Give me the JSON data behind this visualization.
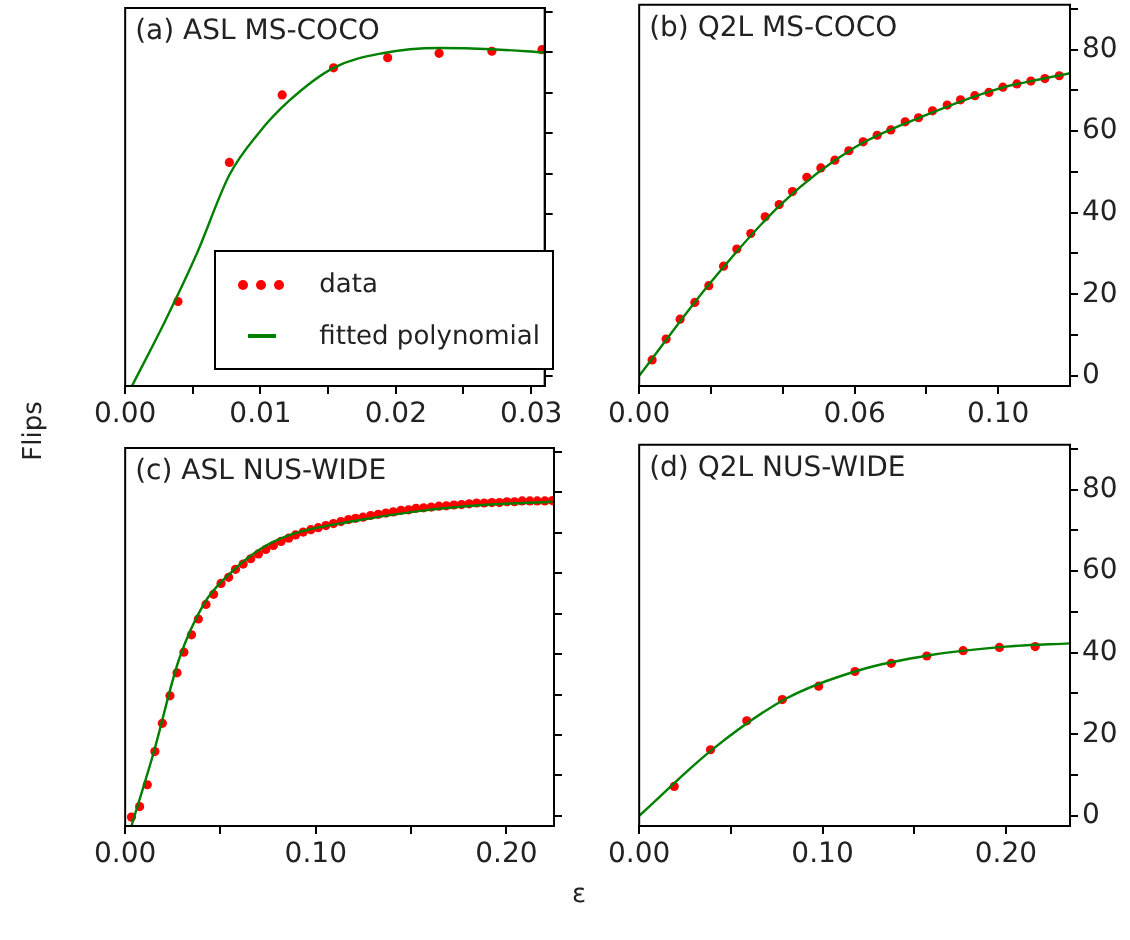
{
  "chart_data": [
    {
      "type": "scatter",
      "title": "(a) ASL MS-COCO",
      "ylabel": "Flips",
      "xlim": [
        0,
        0.031
      ],
      "xticks": [
        {
          "value": 0,
          "label": "0.00"
        },
        {
          "value": 0.005,
          "label": null
        },
        {
          "value": 0.01,
          "label": "0.01"
        },
        {
          "value": 0.015,
          "label": null
        },
        {
          "value": 0.02,
          "label": "0.02"
        },
        {
          "value": 0.025,
          "label": null
        },
        {
          "value": 0.03,
          "label": "0.03"
        }
      ],
      "ylim": [
        -2.5,
        91
      ],
      "yticks": [
        {
          "value": 0,
          "label": null
        },
        {
          "value": 10,
          "label": null
        },
        {
          "value": 20,
          "label": null
        },
        {
          "value": 30,
          "label": null
        },
        {
          "value": 40,
          "label": null
        },
        {
          "value": 50,
          "label": null
        },
        {
          "value": 60,
          "label": null
        },
        {
          "value": 70,
          "label": null
        },
        {
          "value": 80,
          "label": null
        },
        {
          "value": 90,
          "label": null
        }
      ],
      "tick_labels": "x",
      "legend": "bottom right",
      "series": [
        {
          "name": "data",
          "marker": "circle",
          "color": "#ff0000",
          "x": [
            0.0039,
            0.0077,
            0.0116,
            0.0154,
            0.0194,
            0.0232,
            0.0271,
            0.0308
          ],
          "values": [
            18.4,
            52.8,
            69.5,
            76.2,
            78.7,
            79.8,
            80.3,
            80.7
          ]
        },
        {
          "name": "fitted polynomial",
          "type": "line",
          "marker": "none",
          "color": "#008000",
          "x": [
            0.0005,
            0.003,
            0.0053,
            0.0077,
            0.0098,
            0.0121,
            0.0154,
            0.019,
            0.0232,
            0.0271,
            0.0309
          ],
          "values": [
            -2.5,
            13.9,
            30.3,
            49.7,
            59.8,
            68,
            76.2,
            79.8,
            81.1,
            80.8,
            80
          ]
        }
      ]
    },
    {
      "type": "scatter",
      "title": "(b) Q2L MS-COCO",
      "xlim": [
        0,
        0.12
      ],
      "xticks": [
        {
          "value": 0,
          "label": "0.00"
        },
        {
          "value": 0.02,
          "label": null
        },
        {
          "value": 0.04,
          "label": null
        },
        {
          "value": 0.06,
          "label": "0.06"
        },
        {
          "value": 0.08,
          "label": null
        },
        {
          "value": 0.1,
          "label": "0.10"
        }
      ],
      "ylim": [
        -2.5,
        91
      ],
      "yticks": [
        0,
        {
          "value": 10,
          "label": null
        },
        20,
        {
          "value": 30,
          "label": null
        },
        40,
        {
          "value": 50,
          "label": null
        },
        60,
        {
          "value": 70,
          "label": null
        },
        80,
        {
          "value": 90,
          "label": null
        }
      ],
      "series": [
        {
          "marker": "circle",
          "color": "#ff0000",
          "x": [
            0.0036,
            0.0075,
            0.0114,
            0.0155,
            0.0194,
            0.0235,
            0.0272,
            0.0311,
            0.0351,
            0.039,
            0.0427,
            0.0467,
            0.0506,
            0.0545,
            0.0584,
            0.0624,
            0.0663,
            0.0701,
            0.0741,
            0.0778,
            0.0817,
            0.0858,
            0.0895,
            0.0935,
            0.0974,
            0.1013,
            0.1052,
            0.1091,
            0.113,
            0.117
          ],
          "values": [
            3.9,
            9.0,
            13.9,
            18.0,
            22.1,
            26.9,
            31.1,
            34.9,
            39.0,
            42.0,
            45.2,
            48.7,
            51.0,
            52.9,
            55.2,
            57.4,
            59.0,
            60.3,
            62.3,
            63.3,
            65.0,
            66.4,
            67.7,
            68.7,
            69.5,
            70.8,
            71.6,
            72.3,
            72.9,
            73.6
          ]
        },
        {
          "type": "line",
          "marker": "none",
          "color": "#008000",
          "x": [
            0,
            0.02,
            0.04,
            0.06,
            0.08,
            0.1,
            0.12
          ],
          "values": [
            0,
            23,
            42.5,
            56,
            64,
            70.4,
            74.2
          ]
        }
      ]
    },
    {
      "type": "scatter",
      "title": "(c) ASL NUS-WIDE",
      "xlabel": "ε",
      "xlim": [
        0,
        0.225
      ],
      "xticks": [
        {
          "value": 0,
          "label": "0.00"
        },
        {
          "value": 0.05,
          "label": null
        },
        {
          "value": 0.1,
          "label": "0.10"
        },
        {
          "value": 0.15,
          "label": null
        },
        {
          "value": 0.2,
          "label": "0.20"
        }
      ],
      "ylim": [
        -2.5,
        91
      ],
      "yticks": [
        {
          "value": 0,
          "label": null
        },
        {
          "value": 10,
          "label": null
        },
        {
          "value": 20,
          "label": null
        },
        {
          "value": 30,
          "label": null
        },
        {
          "value": 40,
          "label": null
        },
        {
          "value": 50,
          "label": null
        },
        {
          "value": 60,
          "label": null
        },
        {
          "value": 70,
          "label": null
        },
        {
          "value": 80,
          "label": null
        },
        {
          "value": 90,
          "label": null
        }
      ],
      "tick_labels": "x",
      "series": [
        {
          "marker": "circle",
          "color": "#ff0000",
          "x": [
            0.0033,
            0.0076,
            0.0116,
            0.0156,
            0.0195,
            0.0235,
            0.0272,
            0.0308,
            0.0348,
            0.0384,
            0.0424,
            0.0464,
            0.0503,
            0.0543,
            0.0579,
            0.0619,
            0.0659,
            0.0699,
            0.0738,
            0.0778,
            0.0818,
            0.0858,
            0.0894,
            0.0934,
            0.0974,
            0.1013,
            0.1053,
            0.1093,
            0.1132,
            0.1172,
            0.1209,
            0.1248,
            0.1288,
            0.1328,
            0.1368,
            0.1407,
            0.1447,
            0.1487,
            0.1526,
            0.1566,
            0.1606,
            0.1646,
            0.1685,
            0.1725,
            0.1765,
            0.1805,
            0.1844,
            0.1884,
            0.1924,
            0.1964,
            0.2003,
            0.2043,
            0.2083,
            0.2123,
            0.2162,
            0.2202,
            0.2242
          ],
          "values": [
            -0.3,
            2.3,
            7.7,
            15.9,
            22.9,
            29.7,
            35.4,
            40.5,
            44.8,
            48.7,
            52.3,
            54.8,
            57.5,
            59.0,
            61.0,
            62.3,
            63.6,
            64.8,
            65.9,
            66.9,
            67.9,
            68.7,
            69.5,
            70.2,
            70.8,
            71.3,
            71.8,
            72.3,
            72.8,
            73.3,
            73.6,
            73.9,
            74.3,
            74.6,
            74.9,
            75.2,
            75.6,
            75.7,
            76.1,
            76.2,
            76.4,
            76.6,
            76.7,
            76.9,
            77.0,
            77.2,
            77.4,
            77.4,
            77.5,
            77.5,
            77.7,
            77.7,
            77.9,
            77.9,
            77.9,
            77.9,
            78.0
          ]
        },
        {
          "type": "line",
          "marker": "none",
          "color": "#008000",
          "x": [
            0.0033,
            0.0149,
            0.0281,
            0.0414,
            0.0546,
            0.0712,
            0.0877,
            0.1209,
            0.154,
            0.1871,
            0.2242
          ],
          "values": [
            -2.5,
            15.6,
            38.5,
            52.5,
            59.8,
            66.1,
            69.7,
            73,
            75.4,
            76.9,
            77.7
          ]
        }
      ]
    },
    {
      "type": "scatter",
      "title": "(d) Q2L NUS-WIDE",
      "xlim": [
        0,
        0.235
      ],
      "xticks": [
        {
          "value": 0,
          "label": "0.00"
        },
        {
          "value": 0.05,
          "label": null
        },
        {
          "value": 0.1,
          "label": "0.10"
        },
        {
          "value": 0.15,
          "label": null
        },
        {
          "value": 0.2,
          "label": "0.20"
        }
      ],
      "ylim": [
        -2.5,
        91
      ],
      "yticks": [
        0,
        {
          "value": 10,
          "label": null
        },
        20,
        {
          "value": 30,
          "label": null
        },
        40,
        {
          "value": 50,
          "label": null
        },
        60,
        {
          "value": 70,
          "label": null
        },
        80,
        {
          "value": 90,
          "label": null
        }
      ],
      "series": [
        {
          "marker": "circle",
          "color": "#ff0000",
          "x": [
            0.0191,
            0.0389,
            0.0587,
            0.0781,
            0.0979,
            0.1177,
            0.1375,
            0.1569,
            0.1767,
            0.1965,
            0.216
          ],
          "values": [
            7.2,
            16.2,
            23.3,
            28.5,
            31.8,
            35.4,
            37.4,
            39.2,
            40.5,
            41.3,
            41.5
          ]
        },
        {
          "type": "line",
          "marker": "none",
          "color": "#008000",
          "x": [
            0,
            0.04,
            0.08,
            0.12,
            0.16,
            0.2,
            0.235
          ],
          "values": [
            0,
            16.3,
            28.7,
            35.7,
            39.5,
            41.5,
            42.3
          ]
        }
      ]
    }
  ]
}
